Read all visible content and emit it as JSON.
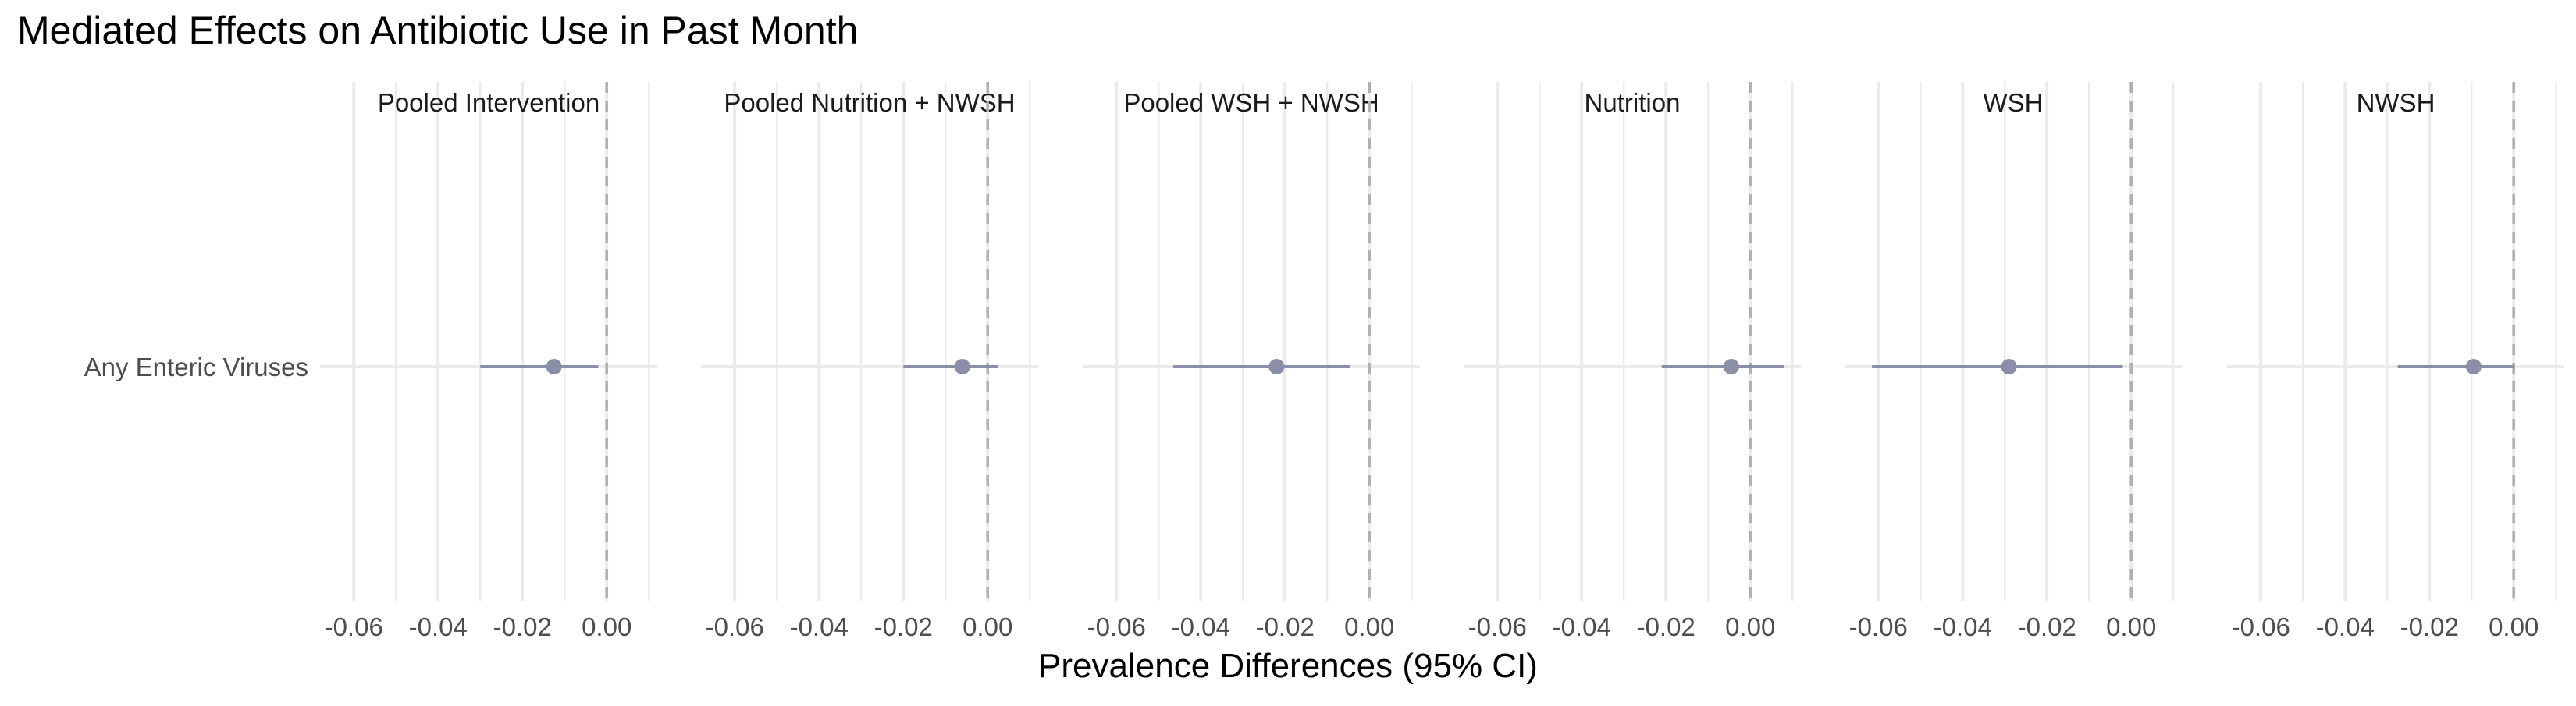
{
  "chart_data": {
    "type": "scatter",
    "title": "Mediated Effects on Antibiotic Use in Past Month",
    "xlabel": "Prevalence Differences (95% CI)",
    "ylabel": "",
    "xlim": [
      -0.068,
      0.012
    ],
    "xticks": [
      -0.06,
      -0.04,
      -0.02,
      0.0
    ],
    "xtick_labels": [
      "-0.06",
      "-0.04",
      "-0.02",
      "0.00"
    ],
    "reference_line": 0,
    "grid": true,
    "categories": [
      "Any Enteric Viruses"
    ],
    "colors": {
      "point": "#8a8fa8",
      "ci": "#8a8fa8",
      "reference": "#b0b0b0",
      "grid": "#ebebeb",
      "text": "#4d4d4d"
    },
    "panels": [
      {
        "name": "Pooled Intervention",
        "points": [
          {
            "category": "Any Enteric Viruses",
            "estimate": -0.0125,
            "ci_low": -0.03,
            "ci_high": -0.002
          }
        ]
      },
      {
        "name": "Pooled Nutrition + NWSH",
        "points": [
          {
            "category": "Any Enteric Viruses",
            "estimate": -0.006,
            "ci_low": -0.02,
            "ci_high": 0.0025
          }
        ]
      },
      {
        "name": "Pooled WSH + NWSH",
        "points": [
          {
            "category": "Any Enteric Viruses",
            "estimate": -0.022,
            "ci_low": -0.0465,
            "ci_high": -0.0045
          }
        ]
      },
      {
        "name": "Nutrition",
        "points": [
          {
            "category": "Any Enteric Viruses",
            "estimate": -0.0045,
            "ci_low": -0.021,
            "ci_high": 0.008
          }
        ]
      },
      {
        "name": "WSH",
        "points": [
          {
            "category": "Any Enteric Viruses",
            "estimate": -0.029,
            "ci_low": -0.0615,
            "ci_high": -0.002
          }
        ]
      },
      {
        "name": "NWSH",
        "points": [
          {
            "category": "Any Enteric Viruses",
            "estimate": -0.0095,
            "ci_low": -0.0275,
            "ci_high": 0.0
          }
        ]
      }
    ]
  }
}
